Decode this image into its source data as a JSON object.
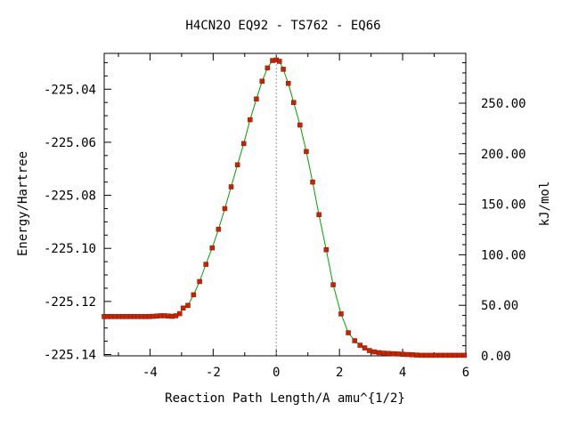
{
  "chart_data": {
    "type": "line",
    "title": "H4CN2O   EQ92 - TS762 - EQ66",
    "xlabel": "Reaction Path Length/A amu^{1/2}",
    "ylabel": "Energy/Hartree",
    "y2label": "kJ/mol",
    "xlim": [
      -5.45,
      6.0
    ],
    "ylim": [
      -225.1405,
      -225.0265
    ],
    "y2lim": [
      0,
      299.3
    ],
    "x_ticks": [
      -4,
      -2,
      0,
      2,
      4,
      6
    ],
    "x_tick_labels": [
      "-4",
      "-2",
      "0",
      "2",
      "4",
      "6"
    ],
    "y_ticks": [
      -225.04,
      -225.06,
      -225.08,
      -225.1,
      -225.12,
      -225.14
    ],
    "y_tick_labels": [
      "-225.04",
      "-225.06",
      "-225.08",
      "-225.10",
      "-225.12",
      "-225.14"
    ],
    "y2_ticks": [
      250,
      200,
      150,
      100,
      50,
      0
    ],
    "y2_tick_labels": [
      "250.00",
      "200.00",
      "150.00",
      "100.00",
      "50.00",
      "0.00"
    ],
    "ts_x": 0,
    "grid": false,
    "colors": {
      "line": "#00a000",
      "marker": "#cc2200",
      "marker_edge": "#8a1500",
      "ts_line": "#999999"
    },
    "series": [
      {
        "values": [
          [
            -5.45,
            -225.1257
          ],
          [
            -5.33,
            -225.1257
          ],
          [
            -5.22,
            -225.1257
          ],
          [
            -5.1,
            -225.1257
          ],
          [
            -4.98,
            -225.1257
          ],
          [
            -4.86,
            -225.1257
          ],
          [
            -4.74,
            -225.1257
          ],
          [
            -4.62,
            -225.1257
          ],
          [
            -4.5,
            -225.1257
          ],
          [
            -4.38,
            -225.1257
          ],
          [
            -4.26,
            -225.1257
          ],
          [
            -4.14,
            -225.1257
          ],
          [
            -4.02,
            -225.1257
          ],
          [
            -3.9,
            -225.1256
          ],
          [
            -3.78,
            -225.1255
          ],
          [
            -3.66,
            -225.1254
          ],
          [
            -3.54,
            -225.1254
          ],
          [
            -3.42,
            -225.1255
          ],
          [
            -3.3,
            -225.1256
          ],
          [
            -3.18,
            -225.1254
          ],
          [
            -3.06,
            -225.1246
          ],
          [
            -2.95,
            -225.1225
          ],
          [
            -2.8,
            -225.1215
          ],
          [
            -2.62,
            -225.1175
          ],
          [
            -2.43,
            -225.1125
          ],
          [
            -2.23,
            -225.106
          ],
          [
            -2.03,
            -225.0998
          ],
          [
            -1.83,
            -225.0928
          ],
          [
            -1.63,
            -225.085
          ],
          [
            -1.43,
            -225.0768
          ],
          [
            -1.23,
            -225.0685
          ],
          [
            -1.03,
            -225.0605
          ],
          [
            -0.83,
            -225.0515
          ],
          [
            -0.63,
            -225.0437
          ],
          [
            -0.45,
            -225.037
          ],
          [
            -0.28,
            -225.032
          ],
          [
            -0.12,
            -225.0292
          ],
          [
            0.0,
            -225.029
          ],
          [
            0.1,
            -225.0295
          ],
          [
            0.22,
            -225.0325
          ],
          [
            0.38,
            -225.0378
          ],
          [
            0.55,
            -225.045
          ],
          [
            0.75,
            -225.0535
          ],
          [
            0.95,
            -225.0635
          ],
          [
            1.15,
            -225.075
          ],
          [
            1.35,
            -225.0873
          ],
          [
            1.58,
            -225.1005
          ],
          [
            1.8,
            -225.1137
          ],
          [
            2.05,
            -225.1247
          ],
          [
            2.28,
            -225.1318
          ],
          [
            2.48,
            -225.1348
          ],
          [
            2.65,
            -225.1365
          ],
          [
            2.8,
            -225.1375
          ],
          [
            2.95,
            -225.1385
          ],
          [
            3.1,
            -225.139
          ],
          [
            3.25,
            -225.1393
          ],
          [
            3.4,
            -225.1395
          ],
          [
            3.55,
            -225.1396
          ],
          [
            3.7,
            -225.1397
          ],
          [
            3.85,
            -225.1398
          ],
          [
            4.0,
            -225.1399
          ],
          [
            4.15,
            -225.14
          ],
          [
            4.3,
            -225.1401
          ],
          [
            4.45,
            -225.1402
          ],
          [
            4.6,
            -225.1403
          ],
          [
            4.75,
            -225.1403
          ],
          [
            4.9,
            -225.1403
          ],
          [
            5.05,
            -225.1403
          ],
          [
            5.2,
            -225.1403
          ],
          [
            5.35,
            -225.1403
          ],
          [
            5.5,
            -225.1403
          ],
          [
            5.65,
            -225.1403
          ],
          [
            5.8,
            -225.1403
          ],
          [
            5.95,
            -225.1403
          ]
        ]
      }
    ]
  }
}
